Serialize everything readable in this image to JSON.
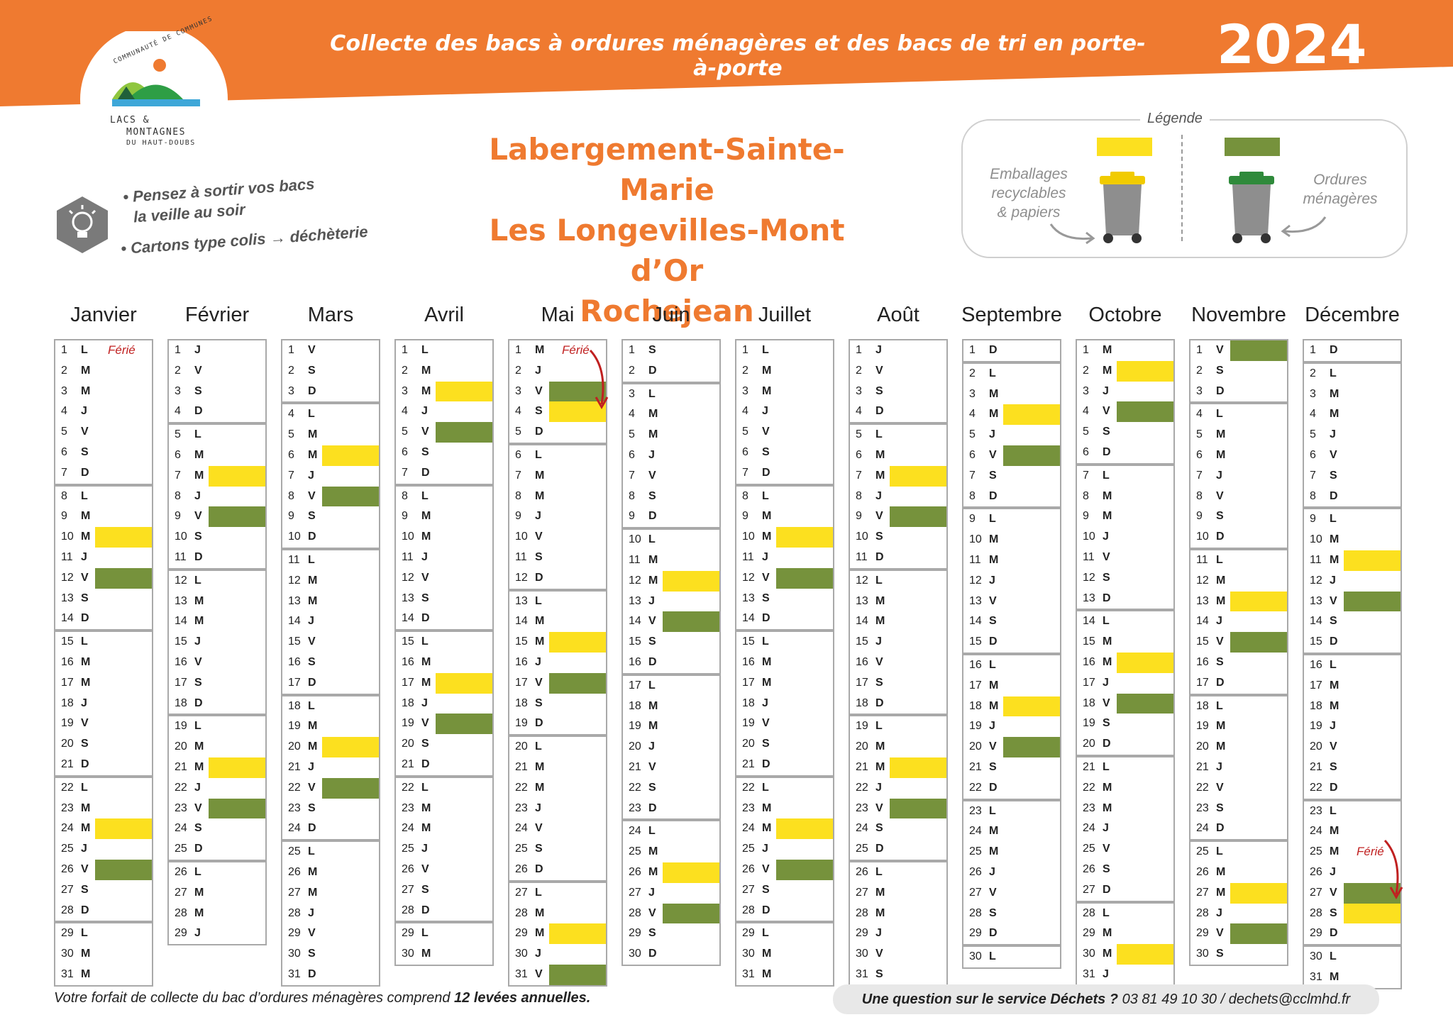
{
  "header": {
    "title": "Collecte des bacs à ordures ménagères et des bacs de tri en porte-à-porte",
    "year": "2024"
  },
  "logo": {
    "line1": "LACS &",
    "line2": "MONTAGNES",
    "line3": "DU HAUT-DOUBS",
    "arc": "COMMUNAUTÉ DE COMMUNES"
  },
  "tips": {
    "tip1_a": "Pensez à sortir vos bacs",
    "tip1_b": "la veille au soir",
    "tip2_a": "Cartons type colis",
    "tip2_b": "déchèterie"
  },
  "towns": [
    "Labergement-Sainte-Marie",
    "Les Longevilles-Mont d’Or",
    "Rochejean"
  ],
  "legend": {
    "title": "Légende",
    "yellow_label": [
      "Emballages",
      "recyclables",
      "& papiers"
    ],
    "green_label": [
      "Ordures",
      "ménagères"
    ],
    "colors": {
      "yellow": "#fce01f",
      "green": "#76923c",
      "accent": "#ef7a30"
    }
  },
  "ferie_label": "Férié",
  "months": [
    {
      "name": "Janvier",
      "start": 1,
      "days": 31,
      "yellow": [
        10,
        24
      ],
      "green": [
        12,
        26
      ],
      "ferie": [
        1
      ],
      "ferie_arrow": false
    },
    {
      "name": "Février",
      "start": 4,
      "days": 29,
      "yellow": [
        7,
        21
      ],
      "green": [
        9,
        23
      ],
      "ferie": [],
      "ferie_arrow": false
    },
    {
      "name": "Mars",
      "start": 5,
      "days": 31,
      "yellow": [
        6,
        20
      ],
      "green": [
        8,
        22
      ],
      "ferie": [],
      "ferie_arrow": false
    },
    {
      "name": "Avril",
      "start": 1,
      "days": 30,
      "yellow": [
        3,
        17
      ],
      "green": [
        5,
        19
      ],
      "ferie": [],
      "ferie_arrow": false
    },
    {
      "name": "Mai",
      "start": 3,
      "days": 31,
      "yellow": [
        4,
        15,
        29
      ],
      "green": [
        3,
        17,
        31
      ],
      "ferie": [
        1
      ],
      "ferie_arrow": true
    },
    {
      "name": "Juin",
      "start": 6,
      "days": 30,
      "yellow": [
        12,
        26
      ],
      "green": [
        14,
        28
      ],
      "ferie": [],
      "ferie_arrow": false
    },
    {
      "name": "Juillet",
      "start": 1,
      "days": 31,
      "yellow": [
        10,
        24
      ],
      "green": [
        12,
        26
      ],
      "ferie": [],
      "ferie_arrow": false
    },
    {
      "name": "Août",
      "start": 4,
      "days": 31,
      "yellow": [
        7,
        21
      ],
      "green": [
        9,
        23
      ],
      "ferie": [],
      "ferie_arrow": false
    },
    {
      "name": "Septembre",
      "start": 0,
      "days": 30,
      "yellow": [
        4,
        18
      ],
      "green": [
        6,
        20
      ],
      "ferie": [],
      "ferie_arrow": false
    },
    {
      "name": "Octobre",
      "start": 2,
      "days": 31,
      "yellow": [
        2,
        16,
        30
      ],
      "green": [
        4,
        18
      ],
      "ferie": [],
      "ferie_arrow": false
    },
    {
      "name": "Novembre",
      "start": 5,
      "days": 30,
      "yellow": [
        13,
        27
      ],
      "green": [
        1,
        15,
        29
      ],
      "ferie": [],
      "ferie_arrow": false
    },
    {
      "name": "Décembre",
      "start": 0,
      "days": 31,
      "yellow": [
        11,
        28
      ],
      "green": [
        13,
        27
      ],
      "ferie": [
        25
      ],
      "ferie_arrow": true
    }
  ],
  "day_letters": [
    "D",
    "L",
    "M",
    "M",
    "J",
    "V",
    "S"
  ],
  "footer": {
    "left_a": "Votre forfait de collecte du bac d’ordures ménagères comprend ",
    "left_b": "12 levées annuelles.",
    "right_a": "Une question sur le service Déchets ?",
    "right_b": " 03 81 49 10 30 / dechets@cclmhd.fr"
  }
}
